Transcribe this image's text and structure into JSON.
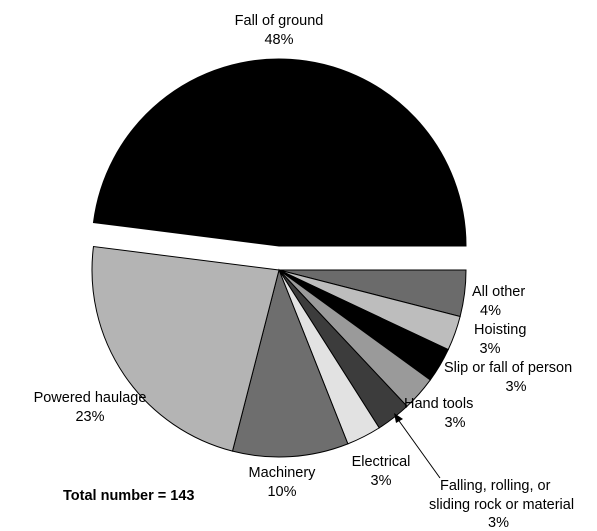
{
  "chart_data": {
    "type": "pie",
    "title": "",
    "total_note": "Total number = 143",
    "slices": [
      {
        "label": "Fall of ground",
        "pct_label": "48%",
        "value": 48,
        "color": "#000000",
        "exploded": true
      },
      {
        "label": "All other",
        "pct_label": "4%",
        "value": 4,
        "color": "#6b6b6b"
      },
      {
        "label": "Hoisting",
        "pct_label": "3%",
        "value": 3,
        "color": "#bdbdbd"
      },
      {
        "label": "Slip or fall of person",
        "pct_label": "3%",
        "value": 3,
        "color": "#000000"
      },
      {
        "label": "Hand tools",
        "pct_label": "3%",
        "value": 3,
        "color": "#9a9a9a"
      },
      {
        "label": "Falling, rolling, or sliding rock or material",
        "pct_label": "3%",
        "value": 3,
        "color": "#3c3c3c"
      },
      {
        "label": "Electrical",
        "pct_label": "3%",
        "value": 3,
        "color": "#e2e2e2"
      },
      {
        "label": "Machinery",
        "pct_label": "10%",
        "value": 10,
        "color": "#6e6e6e"
      },
      {
        "label": "Powered haulage",
        "pct_label": "23%",
        "value": 23,
        "color": "#b4b4b4"
      }
    ]
  }
}
